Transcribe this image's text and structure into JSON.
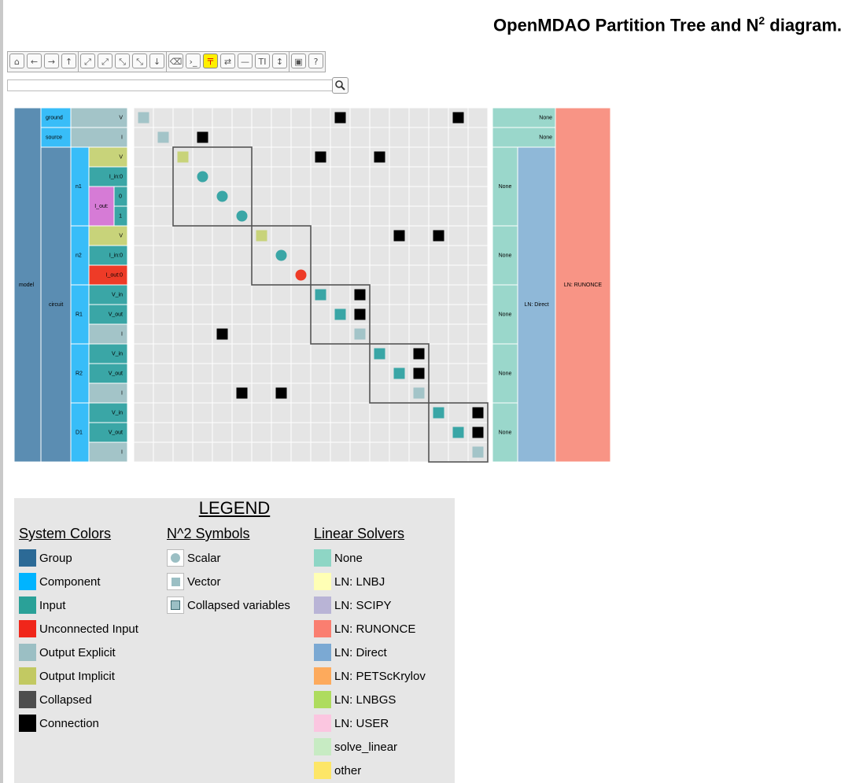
{
  "title": "OpenMDAO Partition Tree and N",
  "title_sup": "2",
  "title_tail": " diagram.",
  "toolbar": {
    "groups": [
      [
        "home-icon",
        "back-icon",
        "forward-icon",
        "up-icon"
      ],
      [
        "expand-icon",
        "expand-all-icon",
        "collapse-icon",
        "collapse-all-icon",
        "sort-icon"
      ],
      [
        "eraser-icon",
        "terminal-icon",
        "connections-icon",
        "swap-icon",
        "minus-icon",
        "text-size-icon",
        "height-icon"
      ],
      [
        "save-icon",
        "help-icon"
      ]
    ],
    "glyphs": {
      "home-icon": "⌂",
      "back-icon": "←",
      "forward-icon": "→",
      "up-icon": "↑",
      "expand-icon": "⤢",
      "expand-all-icon": "⤢",
      "collapse-icon": "⤡",
      "collapse-all-icon": "⤡",
      "sort-icon": "↓",
      "eraser-icon": "⌫",
      "terminal-icon": "›_",
      "connections-icon": "〒",
      "swap-icon": "⇄",
      "minus-icon": "—",
      "text-size-icon": "TI",
      "height-icon": "↕",
      "save-icon": "▣",
      "help-icon": "?"
    },
    "active": "connections-icon"
  },
  "search": {
    "value": "",
    "placeholder": "",
    "icon": "search-icon"
  },
  "colors": {
    "group": "#5b8db2",
    "component": "#38bdf8",
    "input": "#3aa6a6",
    "unconnected": "#ee3b27",
    "output_explicit": "#a3c4c8",
    "output_implicit": "#c8d37a",
    "collapsed": "#4d4d4d",
    "connection": "#000000",
    "ln_none": "#9ad7cb",
    "ln_direct": "#8fb8d8",
    "ln_runonce": "#f89485",
    "cell": "#e5e5e5",
    "grid": "#ffffff",
    "implicit_label_bg": "#d67bd6"
  },
  "tree": {
    "model": "model",
    "groups": [
      {
        "name": "ground",
        "row_start": 0,
        "rows": 1,
        "vars": [
          {
            "name": "V",
            "type": "output_explicit"
          }
        ]
      },
      {
        "name": "source",
        "row_start": 1,
        "rows": 1,
        "vars": [
          {
            "name": "I",
            "type": "output_explicit"
          }
        ]
      },
      {
        "name": "circuit",
        "row_start": 2,
        "rows": 16,
        "children": [
          {
            "name": "n1",
            "row_start": 2,
            "rows": 4,
            "vars": [
              {
                "name": "V",
                "type": "output_implicit"
              },
              {
                "name": "I_in:0",
                "type": "input"
              },
              {
                "name": "I_out:",
                "type": "implicit_label",
                "sub": [
                  "0",
                  "1"
                ]
              }
            ]
          },
          {
            "name": "n2",
            "row_start": 6,
            "rows": 3,
            "vars": [
              {
                "name": "V",
                "type": "output_implicit"
              },
              {
                "name": "I_in:0",
                "type": "input"
              },
              {
                "name": "I_out:0",
                "type": "unconnected"
              }
            ]
          },
          {
            "name": "R1",
            "row_start": 9,
            "rows": 3,
            "vars": [
              {
                "name": "V_in",
                "type": "input"
              },
              {
                "name": "V_out",
                "type": "input"
              },
              {
                "name": "I",
                "type": "output_explicit"
              }
            ]
          },
          {
            "name": "R2",
            "row_start": 12,
            "rows": 3,
            "vars": [
              {
                "name": "V_in",
                "type": "input"
              },
              {
                "name": "V_out",
                "type": "input"
              },
              {
                "name": "I",
                "type": "output_explicit"
              }
            ]
          },
          {
            "name": "D1",
            "row_start": 15,
            "rows": 3,
            "vars": [
              {
                "name": "V_in",
                "type": "input"
              },
              {
                "name": "V_out",
                "type": "input"
              },
              {
                "name": "I",
                "type": "output_explicit"
              }
            ]
          }
        ]
      }
    ]
  },
  "matrix": {
    "size": 18,
    "diagonal": [
      {
        "row": 0,
        "shape": "square",
        "type": "output_explicit"
      },
      {
        "row": 1,
        "shape": "square",
        "type": "output_explicit"
      },
      {
        "row": 2,
        "shape": "square",
        "type": "output_implicit"
      },
      {
        "row": 3,
        "shape": "circle",
        "type": "input"
      },
      {
        "row": 4,
        "shape": "circle",
        "type": "input"
      },
      {
        "row": 5,
        "shape": "circle",
        "type": "input"
      },
      {
        "row": 6,
        "shape": "square",
        "type": "output_implicit"
      },
      {
        "row": 7,
        "shape": "circle",
        "type": "input"
      },
      {
        "row": 8,
        "shape": "circle",
        "type": "unconnected"
      },
      {
        "row": 9,
        "shape": "square",
        "type": "input"
      },
      {
        "row": 10,
        "shape": "square",
        "type": "input"
      },
      {
        "row": 11,
        "shape": "square",
        "type": "output_explicit"
      },
      {
        "row": 12,
        "shape": "square",
        "type": "input"
      },
      {
        "row": 13,
        "shape": "square",
        "type": "input"
      },
      {
        "row": 14,
        "shape": "square",
        "type": "output_explicit"
      },
      {
        "row": 15,
        "shape": "square",
        "type": "input"
      },
      {
        "row": 16,
        "shape": "square",
        "type": "input"
      },
      {
        "row": 17,
        "shape": "square",
        "type": "output_explicit"
      }
    ],
    "connections": [
      [
        0,
        10
      ],
      [
        0,
        16
      ],
      [
        1,
        3
      ],
      [
        2,
        9
      ],
      [
        2,
        12
      ],
      [
        6,
        13
      ],
      [
        6,
        15
      ],
      [
        9,
        11
      ],
      [
        10,
        11
      ],
      [
        11,
        4
      ],
      [
        12,
        14
      ],
      [
        13,
        14
      ],
      [
        14,
        5
      ],
      [
        14,
        7
      ],
      [
        15,
        17
      ],
      [
        16,
        17
      ]
    ],
    "blocks": [
      [
        2,
        5
      ],
      [
        6,
        8
      ],
      [
        9,
        11
      ],
      [
        12,
        14
      ],
      [
        15,
        17
      ]
    ]
  },
  "solvers": {
    "model": "LN: RUNONCE",
    "circuit": "LN: Direct",
    "ground": "None",
    "source": "None",
    "n1": "None",
    "n2": "None",
    "R1": "None",
    "R2": "None",
    "D1": "None"
  },
  "legend": {
    "title": "LEGEND",
    "system_colors": {
      "heading": "System Colors",
      "items": [
        {
          "label": "Group",
          "color": "#2c6a96"
        },
        {
          "label": "Component",
          "color": "#00b4ff"
        },
        {
          "label": "Input",
          "color": "#2aa198"
        },
        {
          "label": "Unconnected Input",
          "color": "#f0261a"
        },
        {
          "label": "Output Explicit",
          "color": "#9bbfc4"
        },
        {
          "label": "Output Implicit",
          "color": "#c2c962"
        },
        {
          "label": "Collapsed",
          "color": "#4d4d4d"
        },
        {
          "label": "Connection",
          "color": "#000000"
        }
      ]
    },
    "n2_symbols": {
      "heading": "N^2 Symbols",
      "items": [
        {
          "label": "Scalar",
          "symbol": "circle"
        },
        {
          "label": "Vector",
          "symbol": "square"
        },
        {
          "label": "Collapsed variables",
          "symbol": "framed-square"
        }
      ]
    },
    "linear_solvers": {
      "heading": "Linear Solvers",
      "items": [
        {
          "label": "None",
          "color": "#8ed6c5"
        },
        {
          "label": "LN: LNBJ",
          "color": "#ffffb5"
        },
        {
          "label": "LN: SCIPY",
          "color": "#b9b4d6"
        },
        {
          "label": "LN: RUNONCE",
          "color": "#fa7e70"
        },
        {
          "label": "LN: Direct",
          "color": "#7ba9d3"
        },
        {
          "label": "LN: PETScKrylov",
          "color": "#fdaa5c"
        },
        {
          "label": "LN: LNBGS",
          "color": "#aedc5e"
        },
        {
          "label": "LN: USER",
          "color": "#fbc6e0"
        },
        {
          "label": "solve_linear",
          "color": "#c7ebc3"
        },
        {
          "label": "other",
          "color": "#fde667"
        }
      ]
    }
  }
}
